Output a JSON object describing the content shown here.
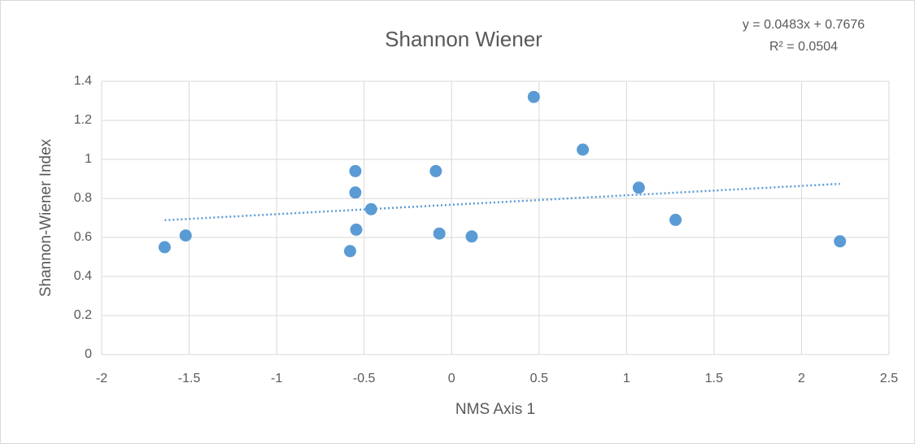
{
  "chart_data": {
    "type": "scatter",
    "title": "Shannon Wiener",
    "x_label": "NMS Axis 1",
    "y_label": "Shannon-Wiener Index",
    "series": [
      {
        "name": "Shannon-Wiener Index",
        "color": "#5b9bd5",
        "x": [
          -1.64,
          -1.52,
          -0.55,
          -0.55,
          -0.46,
          -0.545,
          -0.58,
          -0.09,
          -0.07,
          0.115,
          0.47,
          0.75,
          1.07,
          1.28,
          2.22
        ],
        "values": [
          0.55,
          0.61,
          0.94,
          0.83,
          0.745,
          0.64,
          0.53,
          0.94,
          0.62,
          0.605,
          1.32,
          1.05,
          0.855,
          0.69,
          0.58
        ]
      }
    ],
    "trendline": {
      "equation": "y = 0.0483x + 0.7676",
      "r_squared": "R² = 0.0504",
      "color": "#5b9bd5",
      "style": "dotted"
    },
    "xlim": [
      -2,
      2.5
    ],
    "xticks": [
      -2,
      -1.5,
      -1,
      -0.5,
      0,
      0.5,
      1,
      1.5,
      2,
      2.5
    ],
    "ylim": [
      0,
      1.4
    ],
    "yticks": [
      0,
      0.2,
      0.4,
      0.6,
      0.8,
      1,
      1.2,
      1.4
    ],
    "grid": true
  }
}
